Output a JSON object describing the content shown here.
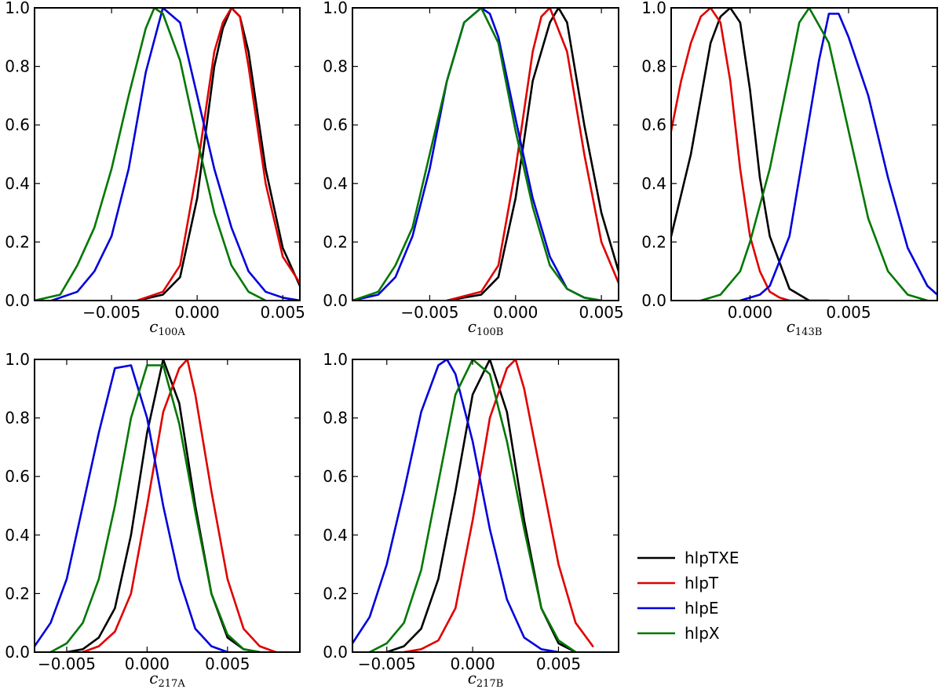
{
  "legend": {
    "placement": "lower-right",
    "entries": [
      {
        "name": "hlpTXE",
        "color": "#000000"
      },
      {
        "name": "hlpT",
        "color": "#e00000"
      },
      {
        "name": "hlpE",
        "color": "#0000dd"
      },
      {
        "name": "hlpX",
        "color": "#007700"
      }
    ]
  },
  "chart_data": [
    {
      "type": "line",
      "xlabel_var": "c",
      "xlabel_sub": "100A",
      "xlim": [
        -0.0095,
        0.006
      ],
      "ylim": [
        0,
        1
      ],
      "xticks": [
        -0.005,
        0.0,
        0.005
      ],
      "xtick_labels": [
        "−0.005",
        "0.000",
        "0.005"
      ],
      "yticks": [
        0,
        0.2,
        0.4,
        0.6,
        0.8,
        1.0
      ],
      "ytick_labels": [
        "0.0",
        "0.2",
        "0.4",
        "0.6",
        "0.8",
        "1.0"
      ],
      "grid": false,
      "series": [
        {
          "name": "hlpTXE",
          "color": "#000000",
          "x": [
            -0.0035,
            -0.002,
            -0.001,
            0.0,
            0.001,
            0.0015,
            0.002,
            0.0025,
            0.003,
            0.004,
            0.005,
            0.006
          ],
          "y": [
            0.0,
            0.02,
            0.08,
            0.35,
            0.8,
            0.93,
            1.0,
            0.97,
            0.85,
            0.45,
            0.18,
            0.05
          ]
        },
        {
          "name": "hlpT",
          "color": "#e00000",
          "x": [
            -0.0035,
            -0.002,
            -0.001,
            0.0,
            0.001,
            0.0015,
            0.002,
            0.0025,
            0.003,
            0.004,
            0.005,
            0.006
          ],
          "y": [
            0.0,
            0.03,
            0.12,
            0.45,
            0.85,
            0.95,
            1.0,
            0.97,
            0.8,
            0.4,
            0.15,
            0.06
          ]
        },
        {
          "name": "hlpE",
          "color": "#0000dd",
          "x": [
            -0.0085,
            -0.007,
            -0.006,
            -0.005,
            -0.004,
            -0.003,
            -0.002,
            -0.001,
            0.0,
            0.001,
            0.002,
            0.003,
            0.004,
            0.005,
            0.006
          ],
          "y": [
            0.0,
            0.03,
            0.1,
            0.22,
            0.45,
            0.78,
            1.0,
            0.95,
            0.7,
            0.45,
            0.25,
            0.1,
            0.03,
            0.01,
            0.0
          ]
        },
        {
          "name": "hlpX",
          "color": "#007700",
          "x": [
            -0.0095,
            -0.008,
            -0.007,
            -0.006,
            -0.005,
            -0.004,
            -0.003,
            -0.0025,
            -0.002,
            -0.001,
            0.0,
            0.001,
            0.002,
            0.003,
            0.004
          ],
          "y": [
            0.0,
            0.02,
            0.12,
            0.25,
            0.45,
            0.7,
            0.93,
            1.0,
            0.98,
            0.82,
            0.55,
            0.3,
            0.12,
            0.03,
            0.0
          ]
        }
      ]
    },
    {
      "type": "line",
      "xlabel_var": "c",
      "xlabel_sub": "100B",
      "xlim": [
        -0.0095,
        0.006
      ],
      "ylim": [
        0,
        1
      ],
      "xticks": [
        -0.005,
        0.0,
        0.005
      ],
      "xtick_labels": [
        "−0.005",
        "0.000",
        "0.005"
      ],
      "yticks": [
        0,
        0.2,
        0.4,
        0.6,
        0.8,
        1.0
      ],
      "ytick_labels": [
        "0.0",
        "0.2",
        "0.4",
        "0.6",
        "0.8",
        "1.0"
      ],
      "grid": false,
      "series": [
        {
          "name": "hlpTXE",
          "color": "#000000",
          "x": [
            -0.004,
            -0.002,
            -0.001,
            0.0,
            0.001,
            0.002,
            0.0025,
            0.003,
            0.004,
            0.005,
            0.006
          ],
          "y": [
            0.0,
            0.02,
            0.08,
            0.35,
            0.75,
            0.95,
            1.0,
            0.95,
            0.6,
            0.3,
            0.1
          ]
        },
        {
          "name": "hlpT",
          "color": "#e00000",
          "x": [
            -0.004,
            -0.002,
            -0.001,
            0.0,
            0.001,
            0.0015,
            0.002,
            0.003,
            0.004,
            0.005,
            0.006
          ],
          "y": [
            0.0,
            0.03,
            0.12,
            0.45,
            0.85,
            0.97,
            1.0,
            0.85,
            0.5,
            0.2,
            0.06
          ]
        },
        {
          "name": "hlpE",
          "color": "#0000dd",
          "x": [
            -0.0095,
            -0.008,
            -0.007,
            -0.006,
            -0.005,
            -0.004,
            -0.003,
            -0.002,
            -0.0015,
            -0.001,
            0.0,
            0.001,
            0.002,
            0.003,
            0.004,
            0.005
          ],
          "y": [
            0.0,
            0.02,
            0.08,
            0.22,
            0.45,
            0.75,
            0.95,
            1.0,
            0.98,
            0.9,
            0.62,
            0.35,
            0.15,
            0.04,
            0.01,
            0.0
          ]
        },
        {
          "name": "hlpX",
          "color": "#007700",
          "x": [
            -0.0095,
            -0.008,
            -0.007,
            -0.006,
            -0.005,
            -0.004,
            -0.003,
            -0.002,
            -0.001,
            0.0,
            0.001,
            0.002,
            0.003,
            0.004,
            0.005
          ],
          "y": [
            0.0,
            0.03,
            0.12,
            0.25,
            0.5,
            0.75,
            0.95,
            1.0,
            0.88,
            0.58,
            0.32,
            0.12,
            0.04,
            0.01,
            0.0
          ]
        }
      ]
    },
    {
      "type": "line",
      "xlabel_var": "c",
      "xlabel_sub": "143B",
      "xlim": [
        -0.004,
        0.0095
      ],
      "ylim": [
        0,
        1
      ],
      "xticks": [
        0.0,
        0.005
      ],
      "xtick_labels": [
        "0.000",
        "0.005"
      ],
      "yticks": [
        0,
        0.2,
        0.4,
        0.6,
        0.8,
        1.0
      ],
      "ytick_labels": [
        "0.0",
        "0.2",
        "0.4",
        "0.6",
        "0.8",
        "1.0"
      ],
      "grid": false,
      "series": [
        {
          "name": "hlpTXE",
          "color": "#000000",
          "x": [
            -0.004,
            -0.003,
            -0.002,
            -0.0015,
            -0.001,
            -0.0005,
            0.0,
            0.0005,
            0.001,
            0.002,
            0.003,
            0.004
          ],
          "y": [
            0.22,
            0.5,
            0.88,
            0.97,
            1.0,
            0.95,
            0.72,
            0.42,
            0.22,
            0.04,
            0.0,
            0.0
          ]
        },
        {
          "name": "hlpT",
          "color": "#e00000",
          "x": [
            -0.004,
            -0.0035,
            -0.003,
            -0.0025,
            -0.002,
            -0.0015,
            -0.001,
            -0.0005,
            0.0,
            0.0005,
            0.001,
            0.0015,
            0.002,
            0.003
          ],
          "y": [
            0.58,
            0.75,
            0.88,
            0.97,
            1.0,
            0.95,
            0.75,
            0.45,
            0.22,
            0.1,
            0.03,
            0.01,
            0.0,
            0.0
          ]
        },
        {
          "name": "hlpE",
          "color": "#0000dd",
          "x": [
            -0.0005,
            0.0005,
            0.001,
            0.002,
            0.003,
            0.0035,
            0.004,
            0.0045,
            0.005,
            0.006,
            0.007,
            0.008,
            0.009,
            0.0095
          ],
          "y": [
            0.0,
            0.02,
            0.05,
            0.22,
            0.62,
            0.82,
            0.98,
            0.98,
            0.9,
            0.7,
            0.42,
            0.18,
            0.05,
            0.02
          ]
        },
        {
          "name": "hlpX",
          "color": "#007700",
          "x": [
            -0.0025,
            -0.0015,
            -0.0005,
            0.0,
            0.001,
            0.002,
            0.0025,
            0.003,
            0.004,
            0.005,
            0.006,
            0.007,
            0.008,
            0.009
          ],
          "y": [
            0.0,
            0.02,
            0.1,
            0.2,
            0.45,
            0.78,
            0.95,
            1.0,
            0.88,
            0.58,
            0.28,
            0.1,
            0.02,
            0.0
          ]
        }
      ]
    },
    {
      "type": "line",
      "xlabel_var": "c",
      "xlabel_sub": "217A",
      "xlim": [
        -0.007,
        0.0095
      ],
      "ylim": [
        0,
        1
      ],
      "xticks": [
        -0.005,
        0.0,
        0.005
      ],
      "xtick_labels": [
        "−0.005",
        "0.000",
        "0.005"
      ],
      "yticks": [
        0,
        0.2,
        0.4,
        0.6,
        0.8,
        1.0
      ],
      "ytick_labels": [
        "0.0",
        "0.2",
        "0.4",
        "0.6",
        "0.8",
        "1.0"
      ],
      "grid": false,
      "series": [
        {
          "name": "hlpTXE",
          "color": "#000000",
          "x": [
            -0.005,
            -0.004,
            -0.003,
            -0.002,
            -0.001,
            0.0,
            0.001,
            0.002,
            0.003,
            0.004,
            0.005,
            0.006,
            0.007
          ],
          "y": [
            0.0,
            0.01,
            0.05,
            0.15,
            0.4,
            0.75,
            1.0,
            0.85,
            0.5,
            0.2,
            0.05,
            0.01,
            0.0
          ]
        },
        {
          "name": "hlpT",
          "color": "#e00000",
          "x": [
            -0.004,
            -0.003,
            -0.002,
            -0.001,
            0.0,
            0.001,
            0.002,
            0.0025,
            0.003,
            0.004,
            0.005,
            0.006,
            0.007,
            0.008
          ],
          "y": [
            0.0,
            0.02,
            0.07,
            0.2,
            0.5,
            0.82,
            0.97,
            1.0,
            0.88,
            0.55,
            0.25,
            0.08,
            0.02,
            0.0
          ]
        },
        {
          "name": "hlpE",
          "color": "#0000dd",
          "x": [
            -0.007,
            -0.006,
            -0.005,
            -0.004,
            -0.003,
            -0.002,
            -0.001,
            0.0,
            0.001,
            0.002,
            0.003,
            0.004,
            0.005
          ],
          "y": [
            0.02,
            0.1,
            0.25,
            0.5,
            0.75,
            0.97,
            0.98,
            0.8,
            0.5,
            0.25,
            0.08,
            0.02,
            0.0
          ]
        },
        {
          "name": "hlpX",
          "color": "#007700",
          "x": [
            -0.006,
            -0.005,
            -0.004,
            -0.003,
            -0.002,
            -0.001,
            0.0,
            0.001,
            0.002,
            0.003,
            0.004,
            0.005,
            0.006,
            0.007
          ],
          "y": [
            0.0,
            0.03,
            0.1,
            0.25,
            0.5,
            0.8,
            0.98,
            0.98,
            0.78,
            0.48,
            0.2,
            0.06,
            0.01,
            0.0
          ]
        }
      ]
    },
    {
      "type": "line",
      "xlabel_var": "c",
      "xlabel_sub": "217B",
      "xlim": [
        -0.007,
        0.0085
      ],
      "ylim": [
        0,
        1
      ],
      "xticks": [
        -0.005,
        0.0,
        0.005
      ],
      "xtick_labels": [
        "−0.005",
        "0.000",
        "0.005"
      ],
      "yticks": [
        0,
        0.2,
        0.4,
        0.6,
        0.8,
        1.0
      ],
      "ytick_labels": [
        "0.0",
        "0.2",
        "0.4",
        "0.6",
        "0.8",
        "1.0"
      ],
      "grid": false,
      "series": [
        {
          "name": "hlpTXE",
          "color": "#000000",
          "x": [
            -0.005,
            -0.004,
            -0.003,
            -0.002,
            -0.001,
            0.0,
            0.001,
            0.002,
            0.003,
            0.004,
            0.005,
            0.006
          ],
          "y": [
            0.0,
            0.02,
            0.08,
            0.25,
            0.55,
            0.88,
            1.0,
            0.82,
            0.45,
            0.15,
            0.03,
            0.0
          ]
        },
        {
          "name": "hlpT",
          "color": "#e00000",
          "x": [
            -0.004,
            -0.003,
            -0.002,
            -0.001,
            0.0,
            0.001,
            0.002,
            0.0025,
            0.003,
            0.004,
            0.005,
            0.006,
            0.007
          ],
          "y": [
            0.0,
            0.01,
            0.04,
            0.15,
            0.45,
            0.8,
            0.97,
            1.0,
            0.9,
            0.6,
            0.3,
            0.1,
            0.02
          ]
        },
        {
          "name": "hlpE",
          "color": "#0000dd",
          "x": [
            -0.007,
            -0.006,
            -0.005,
            -0.004,
            -0.003,
            -0.002,
            -0.0015,
            -0.001,
            0.0,
            0.001,
            0.002,
            0.003,
            0.004,
            0.005
          ],
          "y": [
            0.03,
            0.12,
            0.3,
            0.55,
            0.82,
            0.98,
            1.0,
            0.95,
            0.72,
            0.42,
            0.18,
            0.05,
            0.01,
            0.0
          ]
        },
        {
          "name": "hlpX",
          "color": "#007700",
          "x": [
            -0.006,
            -0.005,
            -0.004,
            -0.003,
            -0.002,
            -0.001,
            0.0,
            0.001,
            0.002,
            0.003,
            0.004,
            0.005,
            0.006
          ],
          "y": [
            0.0,
            0.03,
            0.1,
            0.28,
            0.58,
            0.88,
            1.0,
            0.95,
            0.72,
            0.42,
            0.15,
            0.04,
            0.0
          ]
        }
      ]
    }
  ]
}
